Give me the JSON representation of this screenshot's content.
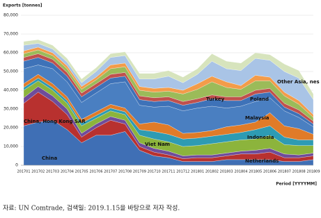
{
  "chart_data": {
    "type": "area",
    "stacked": true,
    "y_label": "Exports [tonnes]",
    "x_label": "Period [YYYYMM]",
    "source": "자료: UN Comtrade, 검색일: 2019.1.15을 바탕으로 저자 작성.",
    "categories": [
      "201701",
      "201702",
      "201703",
      "201704",
      "201705",
      "201706",
      "201707",
      "201708",
      "201709",
      "201710",
      "201711",
      "201712",
      "201801",
      "201802",
      "201803",
      "201804",
      "201805",
      "201806",
      "201807",
      "201808",
      "201809"
    ],
    "ylim": [
      0,
      80000
    ],
    "yticks": [
      0,
      {
        "value": 10000,
        "label": "10,000"
      },
      {
        "value": 20000,
        "label": "20,000"
      },
      {
        "value": 30000,
        "label": "30,000"
      },
      {
        "value": 40000,
        "label": "40,000"
      },
      {
        "value": 50000,
        "label": "50,000"
      },
      {
        "value": 60000,
        "label": "60,000"
      },
      {
        "value": 70000,
        "label": "70,000"
      },
      {
        "value": 80000,
        "label": "80,000"
      }
    ],
    "grid": true,
    "annotations": [
      "China",
      "China, Hong Kong SAR",
      "Viet Nam",
      "Netherlands",
      "Indonesia",
      "Malaysia",
      "Turkey",
      "Poland",
      "Other Asia, nes"
    ],
    "series": [
      {
        "name": "China",
        "color": "#3f6fb5",
        "values": [
          21000,
          23000,
          24000,
          19000,
          12000,
          16000,
          16000,
          18000,
          8000,
          5000,
          4000,
          2000,
          2000,
          2000,
          3000,
          3000,
          3000,
          3000,
          2000,
          2000,
          3000
        ]
      },
      {
        "name": "China, Hong Kong SAR",
        "color": "#b8312f",
        "values": [
          12000,
          16000,
          10000,
          8000,
          3000,
          4000,
          8000,
          4000,
          2000,
          2000,
          1500,
          1500,
          2000,
          2000,
          2000,
          3000,
          3000,
          4000,
          2000,
          2000,
          2000
        ]
      },
      {
        "color": "#6f4c9b",
        "values": [
          3000,
          3000,
          3000,
          3000,
          2000,
          2000,
          2000,
          2000,
          2000,
          2000,
          2000,
          1500,
          1500,
          1500,
          1500,
          1500,
          2000,
          2000,
          2000,
          1500,
          1500
        ]
      },
      {
        "name": "Netherlands",
        "color": "#8cb43c",
        "values": [
          4000,
          3000,
          3000,
          3000,
          4000,
          3000,
          3000,
          3000,
          4000,
          5000,
          5000,
          5000,
          5000,
          6000,
          6000,
          6000,
          6000,
          7000,
          5000,
          5000,
          4000
        ]
      },
      {
        "color": "#2e9bb3",
        "values": [
          1500,
          1500,
          1500,
          1500,
          1500,
          1500,
          1500,
          1500,
          3000,
          4000,
          4000,
          4000,
          4000,
          4000,
          4000,
          4000,
          5000,
          5000,
          4000,
          3000,
          3000
        ]
      },
      {
        "name": "Indonesia",
        "color": "#e07b28",
        "values": [
          2000,
          2000,
          2000,
          2000,
          2000,
          2000,
          2000,
          2000,
          3000,
          5000,
          5000,
          3000,
          3000,
          3000,
          4000,
          4000,
          4000,
          7000,
          6000,
          6000,
          3000
        ]
      },
      {
        "name": "Viet Nam",
        "color": "#4a7fc1",
        "values": [
          8000,
          5000,
          8000,
          8000,
          9000,
          10000,
          11000,
          14000,
          10000,
          8000,
          10000,
          12000,
          13000,
          13000,
          10000,
          10000,
          11000,
          8000,
          8000,
          6000,
          4000
        ]
      },
      {
        "name": "Malaysia",
        "color": "#3e72b8",
        "values": [
          4000,
          4000,
          3000,
          3000,
          3000,
          3000,
          3000,
          3000,
          3000,
          3000,
          3000,
          3000,
          3000,
          4000,
          4000,
          3000,
          4000,
          3000,
          2000,
          2000,
          1500
        ]
      },
      {
        "color": "#c0504d",
        "values": [
          2000,
          2000,
          2000,
          2000,
          2000,
          2000,
          2000,
          2000,
          2000,
          2000,
          2000,
          2000,
          2000,
          2000,
          2000,
          2000,
          2000,
          2000,
          2000,
          2000,
          1500
        ]
      },
      {
        "name": "Turkey",
        "color": "#9bbb59",
        "values": [
          2000,
          2000,
          2000,
          2000,
          2000,
          2000,
          3000,
          3000,
          3000,
          3000,
          3000,
          4000,
          5000,
          7000,
          5000,
          4000,
          5000,
          4000,
          4000,
          3000,
          2000
        ]
      },
      {
        "name": "Poland",
        "color": "#f39c4a",
        "values": [
          1500,
          1500,
          1500,
          1500,
          1500,
          1500,
          2000,
          2000,
          2000,
          2000,
          2000,
          2000,
          3000,
          3000,
          3000,
          2000,
          3000,
          2000,
          2000,
          2000,
          1500
        ]
      },
      {
        "name": "Other Asia, nes",
        "color": "#a9c4e6",
        "values": [
          3000,
          2000,
          2000,
          2000,
          2000,
          3000,
          4000,
          4000,
          4000,
          5000,
          6000,
          4000,
          5000,
          8000,
          7000,
          8000,
          9000,
          9000,
          11000,
          12000,
          8000
        ]
      },
      {
        "color": "#d7e4bd",
        "values": [
          2000,
          2000,
          2000,
          2000,
          2000,
          2000,
          2000,
          2000,
          3000,
          3000,
          3000,
          3000,
          3000,
          4000,
          4000,
          4000,
          3000,
          3000,
          4000,
          4000,
          3000
        ]
      }
    ]
  }
}
